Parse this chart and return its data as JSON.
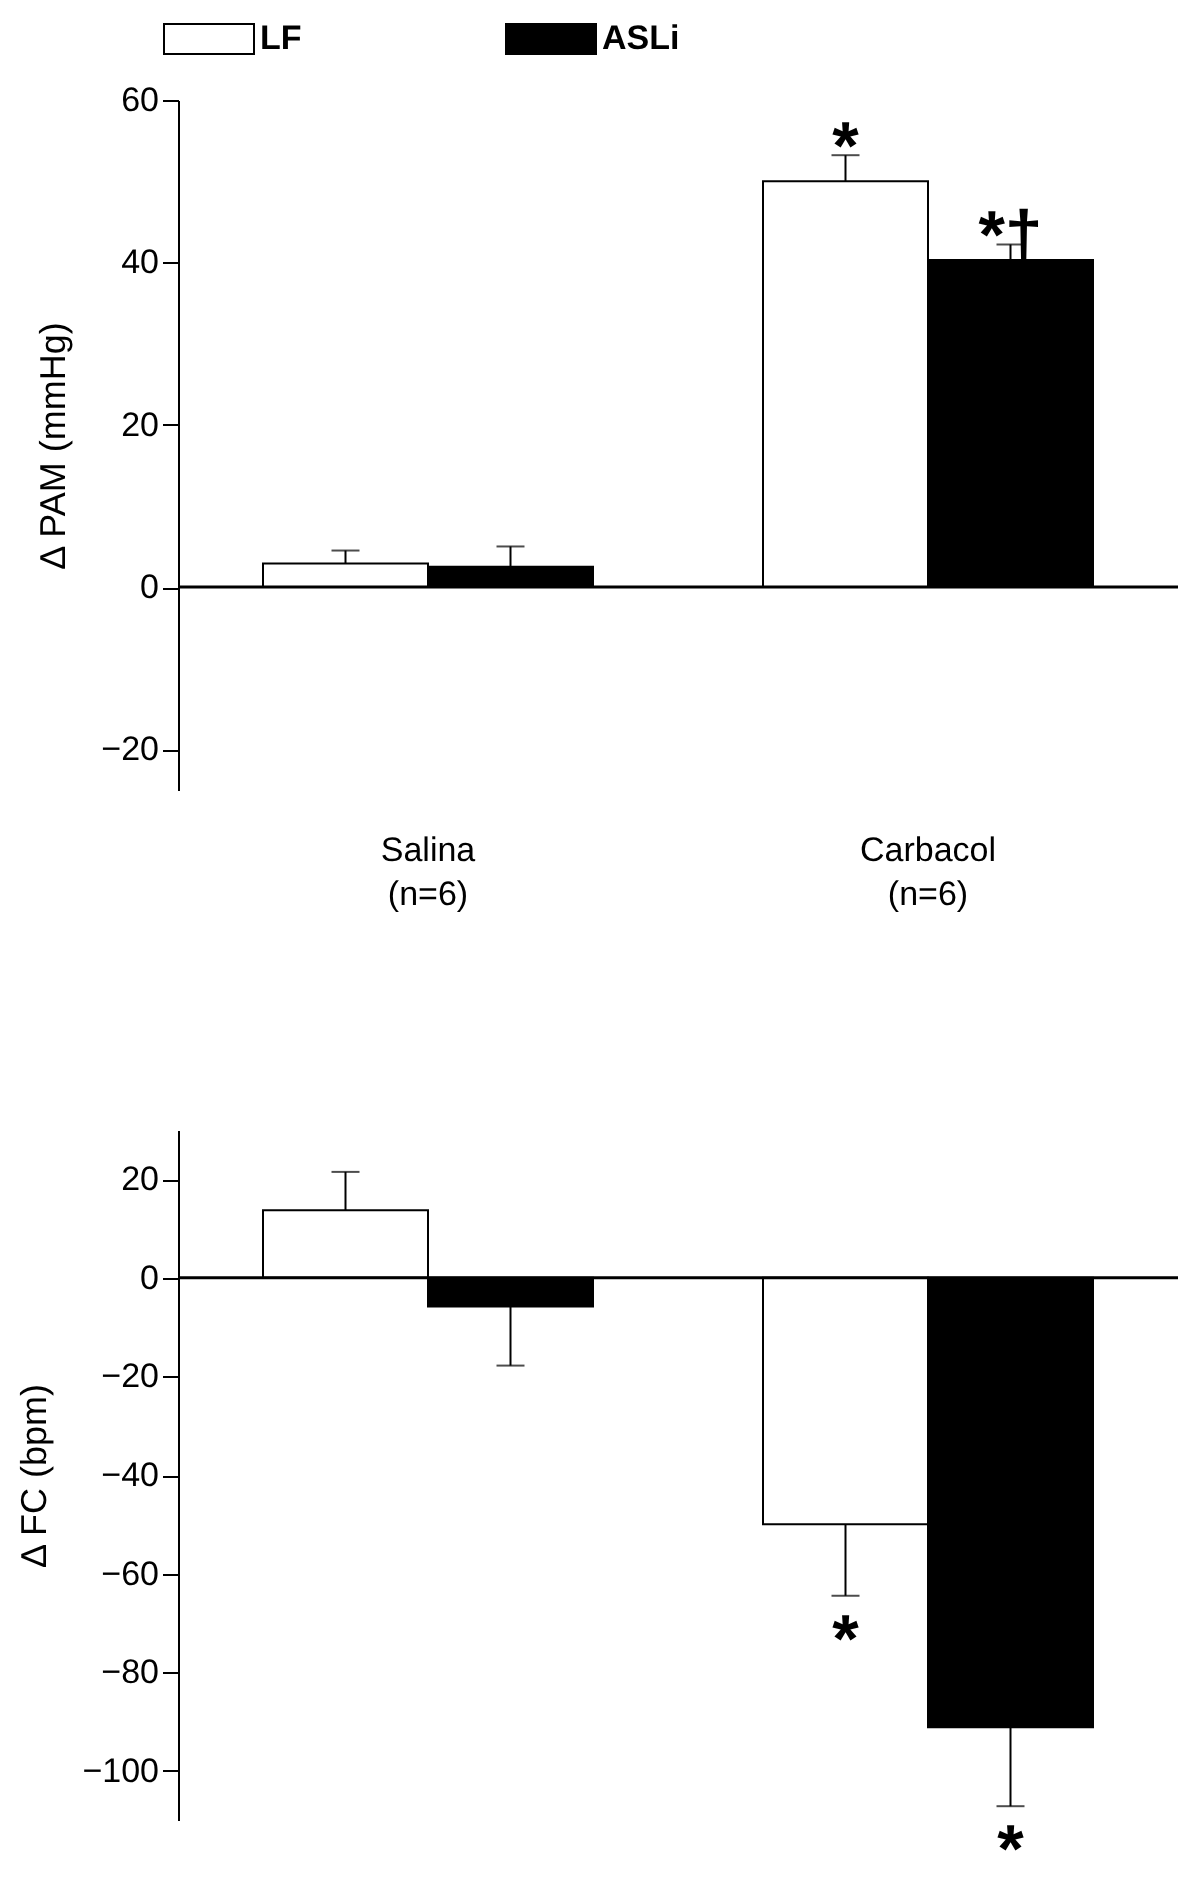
{
  "chart_data": [
    {
      "type": "bar",
      "ylabel": "Δ PAM (mmHg)",
      "categories": [
        "Salina\n(n=6)",
        "Carbacol\n(n=6)"
      ],
      "series": [
        {
          "name": "LF",
          "color": "#ffffff",
          "values": [
            2.9,
            50
          ],
          "errors": [
            [
              2.9,
              4.5
            ],
            [
              50,
              53.2
            ]
          ]
        },
        {
          "name": "ASLi",
          "color": "#000000",
          "values": [
            2.5,
            40.3
          ],
          "errors": [
            [
              2.5,
              5.0
            ],
            [
              40.3,
              42.2
            ]
          ]
        }
      ],
      "ylim": [
        -25,
        60
      ],
      "yticks": [
        -20,
        0,
        20,
        40,
        60
      ],
      "legend": "top",
      "annotations": [
        {
          "text": "*",
          "x": "Carbacol\n(n=6)",
          "y": 50
        },
        {
          "text": "*†",
          "x": "Carbacol\n(n=6)",
          "y": 40.3
        }
      ]
    },
    {
      "type": "bar",
      "ylabel": "Δ FC (bpm)",
      "categories": [
        "Salina\n(n=6)",
        "Carbacol\n(n=6)"
      ],
      "series": [
        {
          "name": "LF",
          "color": "#ffffff",
          "values": [
            13.7,
            -50
          ],
          "errors": [
            [
              13.7,
              21.5
            ],
            [
              -64.5,
              -50
            ]
          ]
        },
        {
          "name": "ASLi",
          "color": "#000000",
          "values": [
            -5.8,
            -91.2
          ],
          "errors": [
            [
              -17.8,
              -5.8
            ],
            [
              -107.2,
              -91.2
            ]
          ]
        }
      ],
      "ylim": [
        -110,
        30
      ],
      "yticks": [
        -100,
        -80,
        -60,
        -40,
        -20,
        0,
        20
      ],
      "tick_labels": "y",
      "annotations": [
        {
          "text": "*",
          "x": "Carbacol\n(n=6)",
          "y": -50
        },
        {
          "text": "*",
          "x": "Carbacol\n(n=6)",
          "y": -91.2
        }
      ]
    }
  ]
}
